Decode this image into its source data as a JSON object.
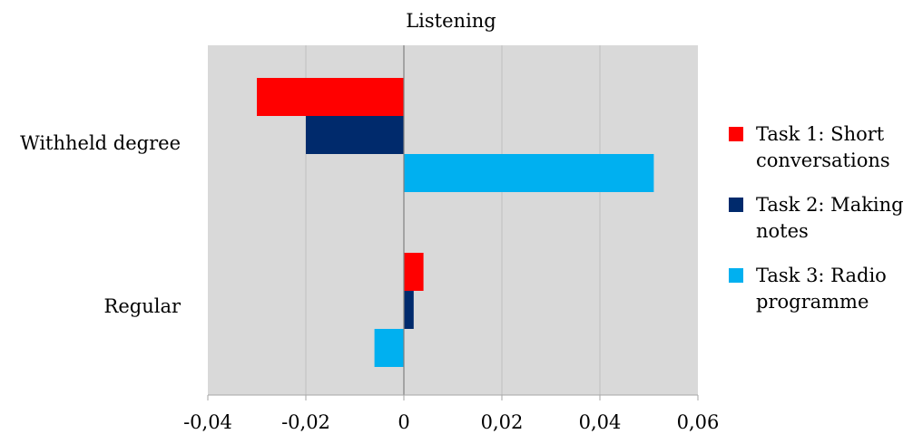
{
  "chart_data": {
    "type": "bar",
    "orientation": "horizontal",
    "title": "Listening",
    "categories": [
      "Withheld degree",
      "Regular"
    ],
    "series": [
      {
        "name": "Task 1: Short conversations",
        "color": "#ff0000",
        "values": [
          -0.03,
          0.004
        ]
      },
      {
        "name": "Task 2: Making notes",
        "color": "#002a6c",
        "values": [
          -0.02,
          0.002
        ]
      },
      {
        "name": "Task 3: Radio programme",
        "color": "#00b0f0",
        "values": [
          0.051,
          -0.006
        ]
      }
    ],
    "xlim": [
      -0.04,
      0.06
    ],
    "xticks": [
      "-0,04",
      "-0,02",
      "0",
      "0,02",
      "0,04",
      "0,06"
    ],
    "grid": true,
    "plot_background": "#d9d9d9",
    "legend_position": "right"
  }
}
